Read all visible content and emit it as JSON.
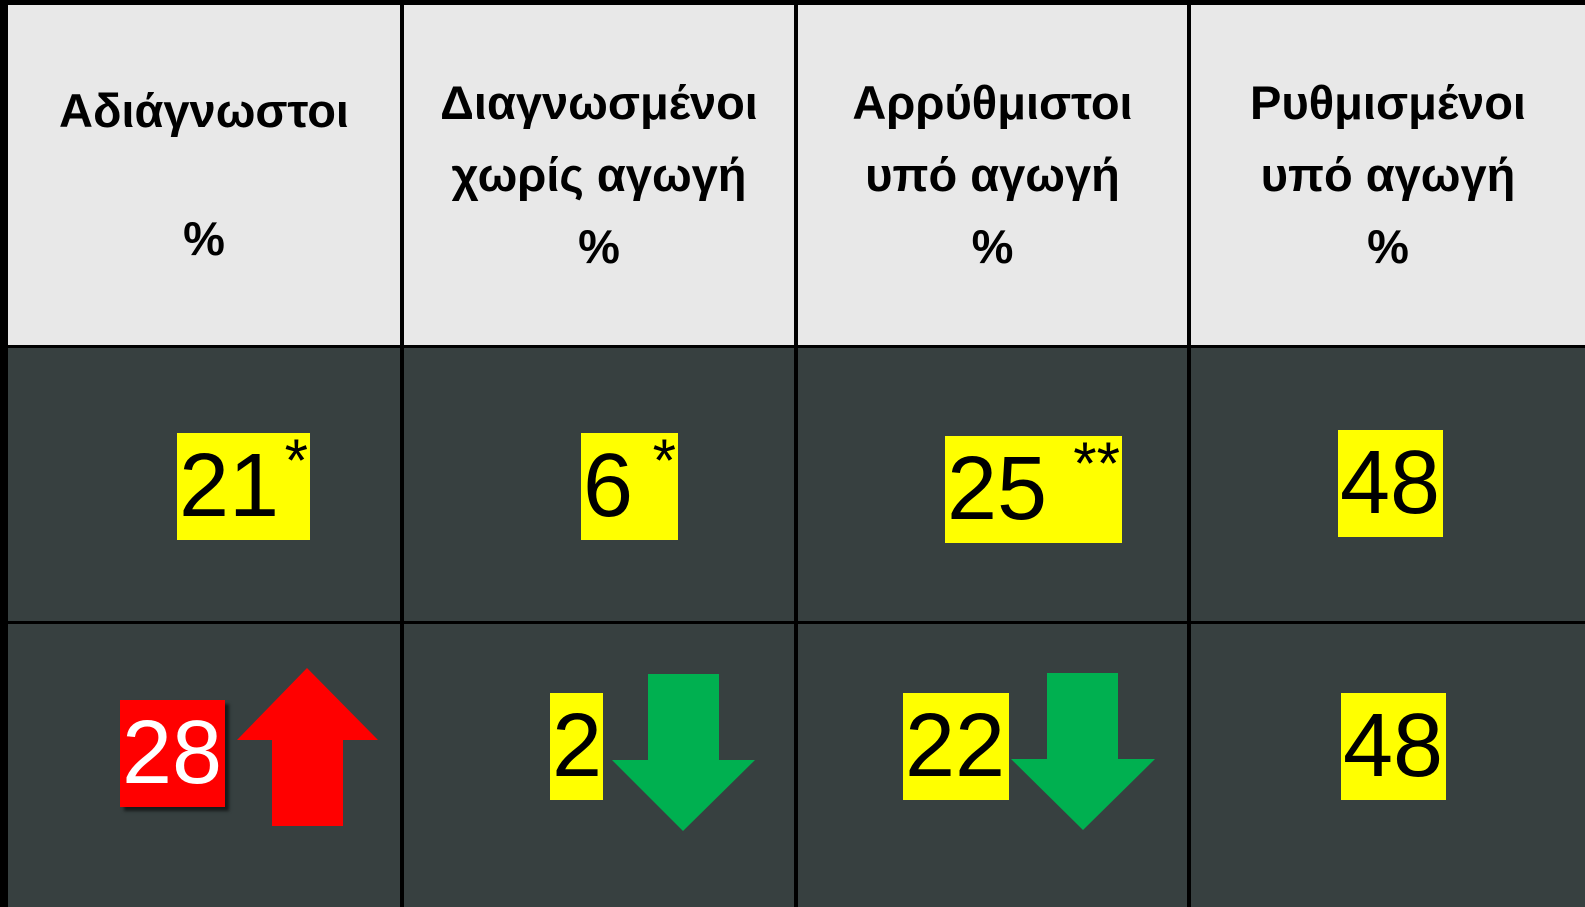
{
  "header": [
    {
      "lines": [
        "Αδιάγνωστοι",
        "%"
      ]
    },
    {
      "lines": [
        "Διαγνωσμένοι",
        "χωρίς αγωγή",
        "%"
      ]
    },
    {
      "lines": [
        "Αρρύθμιστοι",
        "υπό αγωγή",
        "%"
      ]
    },
    {
      "lines": [
        "Ρυθμισμένοι",
        "υπό αγωγή",
        "%"
      ]
    }
  ],
  "rows": [
    [
      {
        "value": "21",
        "note": "*"
      },
      {
        "value": "6",
        "note": "*"
      },
      {
        "value": "25",
        "note": "**"
      },
      {
        "value": "48"
      }
    ],
    [
      {
        "value": "28"
      },
      {
        "value": "2"
      },
      {
        "value": "22"
      },
      {
        "value": "48"
      }
    ]
  ]
}
